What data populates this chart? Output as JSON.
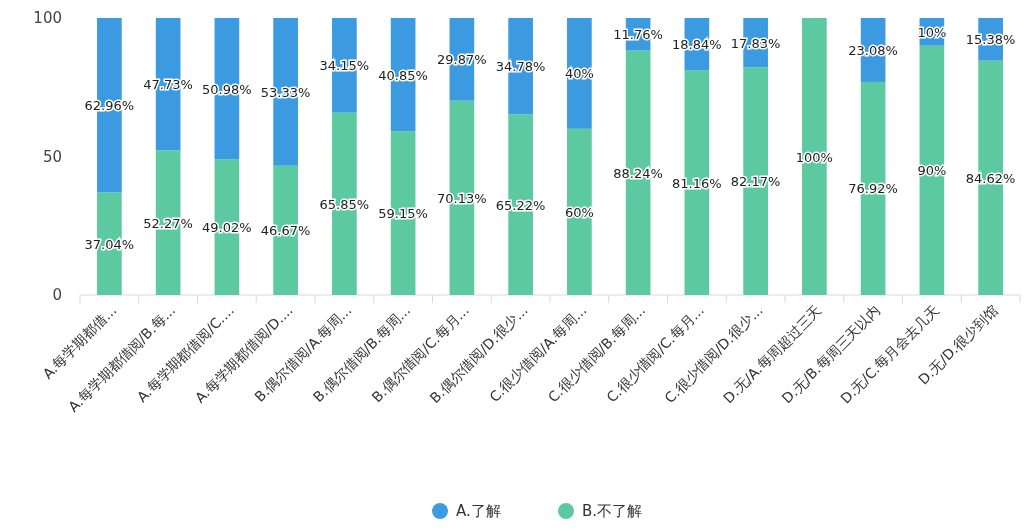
{
  "chart_data": {
    "type": "bar",
    "stacked": true,
    "legend": "bottom",
    "categories": [
      "A.每学期都借...",
      "A.每学期都借阅/B.每...",
      "A.每学期都借阅/C....",
      "A.每学期都借阅/D....",
      "B.偶尔借阅/A.每周...",
      "B.偶尔借阅/B.每周...",
      "B.偶尔借阅/C.每月...",
      "B.偶尔借阅/D.很少...",
      "C.很少借阅/A.每周...",
      "C.很少借阅/B.每周...",
      "C.很少借阅/C.每月...",
      "C.很少借阅/D.很少...",
      "D.无/A.每周超过三天",
      "D.无/B.每周三天以内",
      "D.无/C.每月会去几天",
      "D.无/D.很少到馆"
    ],
    "series": [
      {
        "name": "B.不了解",
        "color": "#5cc9a0",
        "values": [
          37.04,
          52.27,
          49.02,
          46.67,
          65.85,
          59.15,
          70.13,
          65.22,
          60,
          88.24,
          81.16,
          82.17,
          100,
          76.92,
          90,
          84.62
        ],
        "value_labels": [
          "37.04%",
          "52.27%",
          "49.02%",
          "46.67%",
          "65.85%",
          "59.15%",
          "70.13%",
          "65.22%",
          "60%",
          "88.24%",
          "81.16%",
          "82.17%",
          "100%",
          "76.92%",
          "90%",
          "84.62%"
        ]
      },
      {
        "name": "A.了解",
        "color": "#3c9be0",
        "values": [
          62.96,
          47.73,
          50.98,
          53.33,
          34.15,
          40.85,
          29.87,
          34.78,
          40,
          11.76,
          18.84,
          17.83,
          0,
          23.08,
          10,
          15.38
        ],
        "value_labels": [
          "62.96%",
          "47.73%",
          "50.98%",
          "53.33%",
          "34.15%",
          "40.85%",
          "29.87%",
          "34.78%",
          "40%",
          "11.76%",
          "18.84%",
          "17.83%",
          null,
          "23.08%",
          "10%",
          "15.38%"
        ]
      }
    ],
    "ylim": [
      0,
      100
    ],
    "yticks": [
      0,
      50,
      100
    ]
  }
}
